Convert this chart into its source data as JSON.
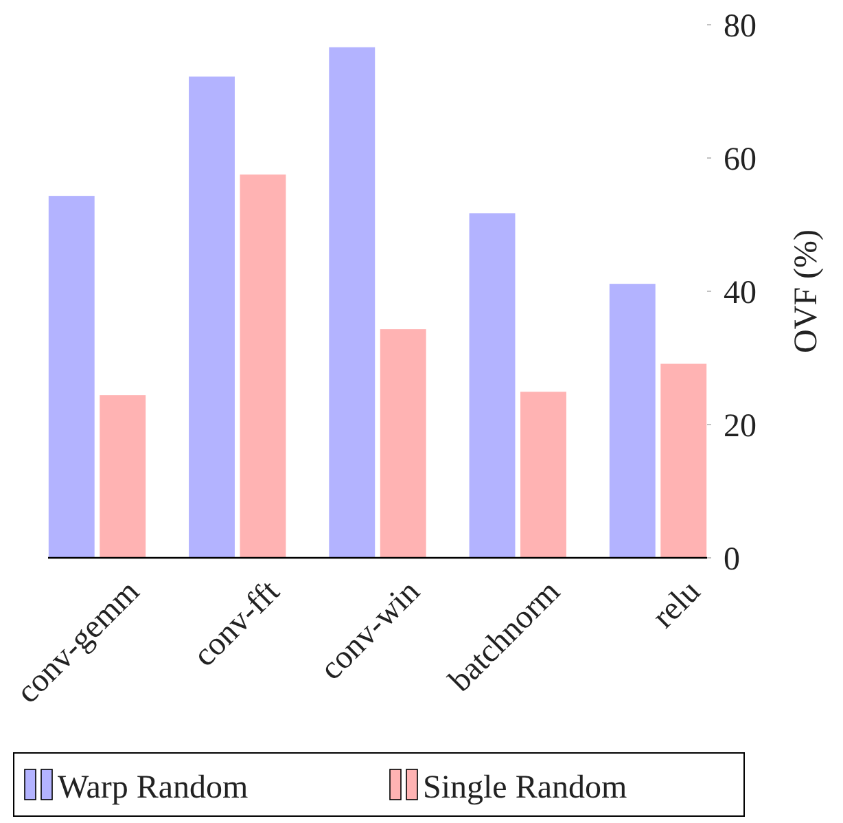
{
  "chart_data": {
    "type": "bar",
    "ylabel": "OVF (%)",
    "categories": [
      "conv-gemm",
      "conv-fft",
      "conv-win",
      "batchnorm",
      "relu"
    ],
    "series": [
      {
        "name": "Warp Random",
        "color": "#b3b3ff",
        "values": [
          54.4,
          72.3,
          76.7,
          51.8,
          41.2
        ]
      },
      {
        "name": "Single Random",
        "color": "#ffb3b3",
        "values": [
          24.5,
          57.6,
          34.4,
          25,
          29.2
        ]
      }
    ],
    "ylim": [
      0,
      80
    ],
    "yticks": [
      0,
      20,
      40,
      60,
      80
    ],
    "legend": "bottom"
  }
}
